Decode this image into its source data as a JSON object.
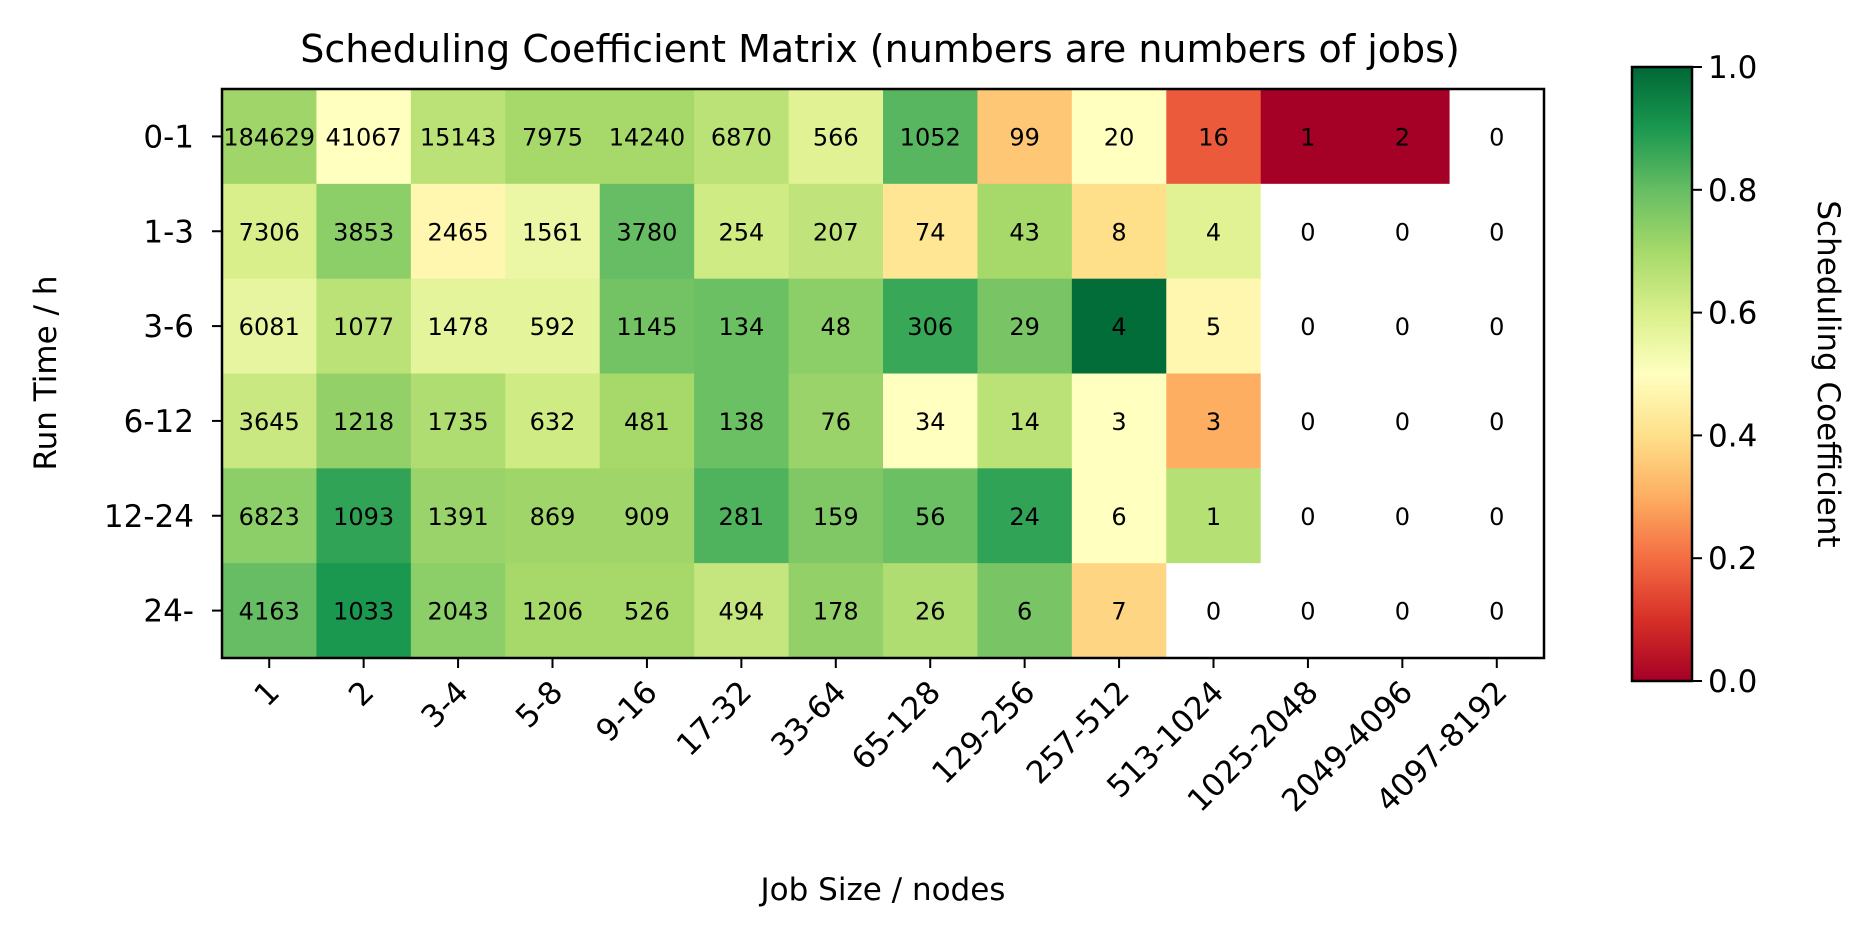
{
  "chart_data": {
    "type": "heatmap",
    "title": "Scheduling Coefficient Matrix (numbers are numbers of jobs)",
    "xlabel": "Job Size / nodes",
    "ylabel": "Run Time / h",
    "x_categories": [
      "1",
      "2",
      "3-4",
      "5-8",
      "9-16",
      "17-32",
      "33-64",
      "65-128",
      "129-256",
      "257-512",
      "513-1024",
      "1025-2048",
      "2049-4096",
      "4097-8192"
    ],
    "y_categories": [
      "0-1",
      "1-3",
      "3-6",
      "6-12",
      "12-24",
      "24-"
    ],
    "counts": [
      [
        "184629",
        "41067",
        "15143",
        "7975",
        "14240",
        "6870",
        "566",
        "1052",
        "99",
        "20",
        "16",
        "1",
        "2",
        "0"
      ],
      [
        "7306",
        "3853",
        "2465",
        "1561",
        "3780",
        "254",
        "207",
        "74",
        "43",
        "8",
        "4",
        "0",
        "0",
        "0"
      ],
      [
        "6081",
        "1077",
        "1478",
        "592",
        "1145",
        "134",
        "48",
        "306",
        "29",
        "4",
        "5",
        "0",
        "0",
        "0"
      ],
      [
        "3645",
        "1218",
        "1735",
        "632",
        "481",
        "138",
        "76",
        "34",
        "14",
        "3",
        "3",
        "0",
        "0",
        "0"
      ],
      [
        "6823",
        "1093",
        "1391",
        "869",
        "909",
        "281",
        "159",
        "56",
        "24",
        "6",
        "1",
        "0",
        "0",
        "0"
      ],
      [
        "4163",
        "1033",
        "2043",
        "1206",
        "526",
        "494",
        "178",
        "26",
        "6",
        "7",
        "0",
        "0",
        "0",
        "0"
      ]
    ],
    "coefficients": [
      [
        0.71,
        0.5,
        0.66,
        0.7,
        0.7,
        0.66,
        0.58,
        0.82,
        0.35,
        0.5,
        0.17,
        0.0,
        0.0,
        null
      ],
      [
        0.6,
        0.74,
        0.47,
        0.55,
        0.8,
        0.62,
        0.65,
        0.42,
        0.7,
        0.4,
        0.58,
        null,
        null,
        null
      ],
      [
        0.56,
        0.66,
        0.57,
        0.57,
        0.78,
        0.79,
        0.74,
        0.86,
        0.77,
        0.99,
        0.47,
        null,
        null,
        null
      ],
      [
        0.63,
        0.73,
        0.68,
        0.62,
        0.7,
        0.79,
        0.72,
        0.5,
        0.66,
        0.5,
        0.3,
        null,
        null,
        null
      ],
      [
        0.74,
        0.87,
        0.72,
        0.71,
        0.71,
        0.83,
        0.76,
        0.79,
        0.87,
        0.5,
        0.67,
        null,
        null,
        null
      ],
      [
        0.8,
        0.9,
        0.74,
        0.7,
        0.7,
        0.64,
        0.73,
        0.68,
        0.77,
        0.38,
        null,
        null,
        null,
        null
      ]
    ],
    "colorbar": {
      "label": "Scheduling Coefficient",
      "range": [
        0.0,
        1.0
      ],
      "ticks": [
        "0.0",
        "0.2",
        "0.4",
        "0.6",
        "0.8",
        "1.0"
      ],
      "colormap": "RdYlGn",
      "stops": [
        "#a50026",
        "#d73027",
        "#f46d43",
        "#fdae61",
        "#fee08b",
        "#ffffbf",
        "#d9ef8b",
        "#a6d96a",
        "#66bd63",
        "#1a9850",
        "#006837"
      ]
    },
    "empty_cell_color": "#ffffff"
  }
}
